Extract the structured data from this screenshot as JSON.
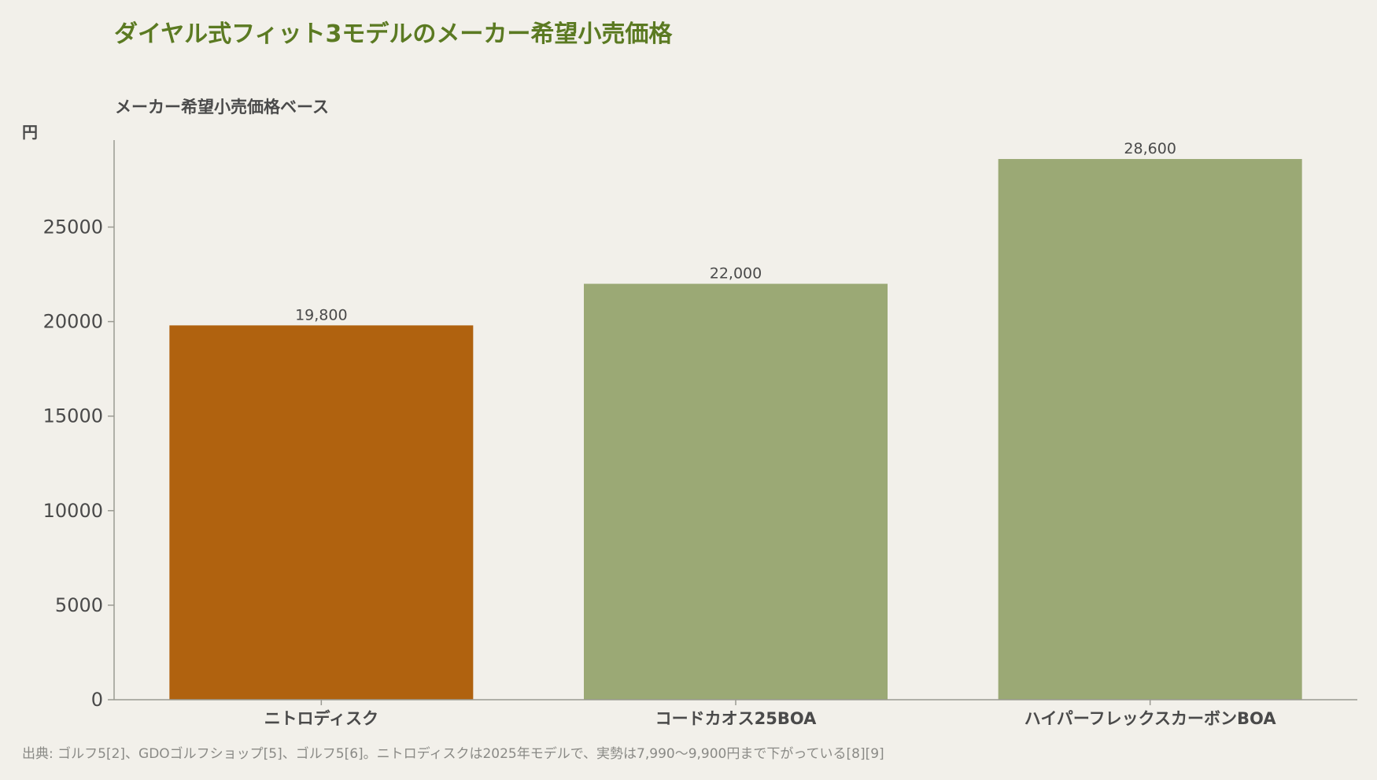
{
  "chart_data": {
    "type": "bar",
    "title": "ダイヤル式フィット3モデルのメーカー希望小売価格",
    "subtitle": "メーカー希望小売価格ベース",
    "ylabel": "円",
    "xlabel": "",
    "categories": [
      "ニトロディスク",
      "コードカオス25BOA",
      "ハイパーフレックスカーボンBOA"
    ],
    "values": [
      19800,
      22000,
      28600
    ],
    "value_labels": [
      "19,800",
      "22,000",
      "28,600"
    ],
    "colors": [
      "#b0620f",
      "#9ba975",
      "#9ba975"
    ],
    "ylim": [
      0,
      29600
    ],
    "yticks": [
      0,
      5000,
      10000,
      15000,
      20000,
      25000
    ],
    "ytick_labels": [
      "0",
      "5000",
      "10000",
      "15000",
      "20000",
      "25000"
    ],
    "grid": false,
    "source": "出典: ゴルフ5[2]、GDOゴルフショップ[5]、ゴルフ5[6]。ニトロディスクは2025年モデルで、実勢は7,990〜9,900円まで下がっている[8][9]"
  },
  "colors": {
    "background": "#f2f0ea",
    "title": "#5b7a22",
    "axis": "#9a9a92",
    "highlight_bar": "#b0620f",
    "bar": "#9ba975"
  }
}
